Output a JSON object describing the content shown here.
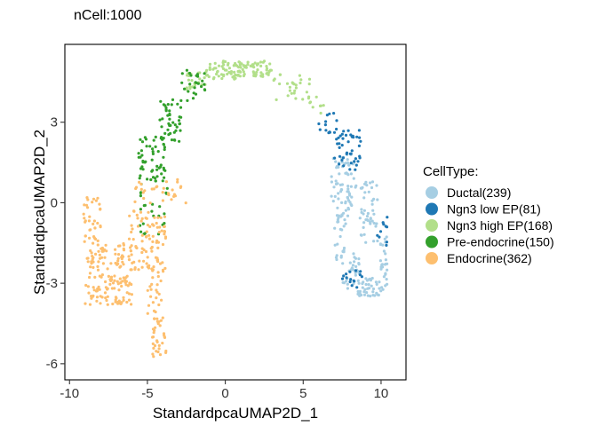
{
  "chart_data": {
    "type": "scatter",
    "title": "nCell:1000",
    "xlabel": "StandardpcaUMAP2D_1",
    "ylabel": "StandardpcaUMAP2D_2",
    "xlim": [
      -10.3,
      11.6
    ],
    "ylim": [
      -6.6,
      5.9
    ],
    "xticks": [
      -10,
      -5,
      0,
      5,
      10
    ],
    "yticks": [
      -6,
      -3,
      0,
      3
    ],
    "legend": {
      "title": "CellType:",
      "placement": "right"
    },
    "series": [
      {
        "name": "Ductal(239)",
        "color": "#A6CEE3",
        "count": 239,
        "clusters": [
          {
            "x": [
              6.8,
              8.4
            ],
            "y": [
              -0.5,
              1.8
            ],
            "n": 70
          },
          {
            "x": [
              8.6,
              9.8
            ],
            "y": [
              -1.5,
              0.8
            ],
            "n": 45
          },
          {
            "x": [
              7.0,
              7.8
            ],
            "y": [
              -2.2,
              -0.3
            ],
            "n": 25
          },
          {
            "x": [
              7.5,
              8.6
            ],
            "y": [
              -3.2,
              -1.8
            ],
            "n": 30
          },
          {
            "x": [
              8.5,
              10.0
            ],
            "y": [
              -3.5,
              -2.8
            ],
            "n": 40
          },
          {
            "x": [
              9.9,
              10.4
            ],
            "y": [
              -3.3,
              -1.2
            ],
            "n": 29
          }
        ]
      },
      {
        "name": "Ngn3 low EP(81)",
        "color": "#1F78B4",
        "count": 81,
        "clusters": [
          {
            "x": [
              6.0,
              7.2
            ],
            "y": [
              2.6,
              3.5
            ],
            "n": 14
          },
          {
            "x": [
              7.0,
              8.8
            ],
            "y": [
              1.2,
              2.7
            ],
            "n": 42
          },
          {
            "x": [
              9.6,
              10.4
            ],
            "y": [
              -1.6,
              -0.5
            ],
            "n": 10
          },
          {
            "x": [
              7.4,
              8.8
            ],
            "y": [
              -3.2,
              -2.5
            ],
            "n": 15
          }
        ]
      },
      {
        "name": "Ngn3 high EP(168)",
        "color": "#B2DF8A",
        "count": 168,
        "clusters": [
          {
            "x": [
              -1.2,
              0.8
            ],
            "y": [
              4.6,
              5.3
            ],
            "n": 50
          },
          {
            "x": [
              0.8,
              3.0
            ],
            "y": [
              4.7,
              5.3
            ],
            "n": 60
          },
          {
            "x": [
              -2.5,
              -1.2
            ],
            "y": [
              4.2,
              4.9
            ],
            "n": 22
          },
          {
            "x": [
              3.0,
              5.5
            ],
            "y": [
              3.8,
              4.8
            ],
            "n": 28
          },
          {
            "x": [
              5.4,
              6.5
            ],
            "y": [
              3.3,
              4.0
            ],
            "n": 8
          }
        ]
      },
      {
        "name": "Pre-endocrine(150)",
        "color": "#33A02C",
        "count": 150,
        "clusters": [
          {
            "x": [
              -2.8,
              -1.2
            ],
            "y": [
              3.8,
              5.0
            ],
            "n": 25
          },
          {
            "x": [
              -4.2,
              -2.8
            ],
            "y": [
              2.2,
              3.9
            ],
            "n": 45
          },
          {
            "x": [
              -5.6,
              -3.8
            ],
            "y": [
              0.8,
              2.5
            ],
            "n": 55
          },
          {
            "x": [
              -5.5,
              -3.6
            ],
            "y": [
              -1.2,
              0.8
            ],
            "n": 25
          }
        ]
      },
      {
        "name": "Endocrine(362)",
        "color": "#FDBF6F",
        "count": 362,
        "clusters": [
          {
            "x": [
              -9.2,
              -8.0
            ],
            "y": [
              -1.5,
              0.2
            ],
            "n": 35
          },
          {
            "x": [
              -9.0,
              -6.0
            ],
            "y": [
              -3.8,
              -1.5
            ],
            "n": 150
          },
          {
            "x": [
              -6.2,
              -5.0
            ],
            "y": [
              -2.5,
              -0.2
            ],
            "n": 40
          },
          {
            "x": [
              -5.0,
              -3.8
            ],
            "y": [
              -4.5,
              -0.3
            ],
            "n": 80
          },
          {
            "x": [
              -4.7,
              -3.8
            ],
            "y": [
              -5.9,
              -4.5
            ],
            "n": 27
          },
          {
            "x": [
              -5.8,
              -2.5
            ],
            "y": [
              -0.1,
              0.9
            ],
            "n": 30
          }
        ]
      }
    ]
  }
}
